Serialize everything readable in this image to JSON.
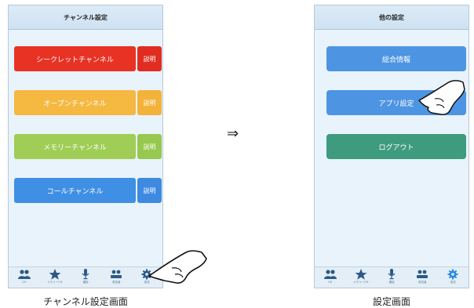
{
  "left_screen": {
    "title": "チャンネル設定",
    "caption": "チャンネル設定画面",
    "rows": [
      {
        "label": "シークレットチャンネル",
        "help": "説明",
        "color": "#e83224",
        "help_color": "#e02c21"
      },
      {
        "label": "オープンチャンネル",
        "help": "説明",
        "color": "#f5b840",
        "help_color": "#f3b23a"
      },
      {
        "label": "メモリーチャンネル",
        "help": "説明",
        "color": "#9fcd55",
        "help_color": "#97c84f"
      },
      {
        "label": "コールチャンネル",
        "help": "説明",
        "color": "#3f8fe4",
        "help_color": "#3d8ae0"
      }
    ]
  },
  "right_screen": {
    "title": "他の設定",
    "caption": "設定画面",
    "buttons": [
      {
        "label": "総合情報",
        "color": "#4d95e2"
      },
      {
        "label": "アプリ設定",
        "color": "#4d95e2"
      },
      {
        "label": "ログアウト",
        "color": "#3f9b7d"
      }
    ]
  },
  "tabbar": {
    "items": [
      {
        "icon": "users-icon",
        "label": "CH"
      },
      {
        "icon": "star-icon",
        "label": "メモリーCH"
      },
      {
        "icon": "microphone-icon",
        "label": "通話"
      },
      {
        "icon": "people-icon",
        "label": "参加者"
      },
      {
        "icon": "gear-icon",
        "label": "設定"
      }
    ],
    "inactive_color": "#2b5a86",
    "active_color": "#2a8de0"
  },
  "arrow": "⇒"
}
